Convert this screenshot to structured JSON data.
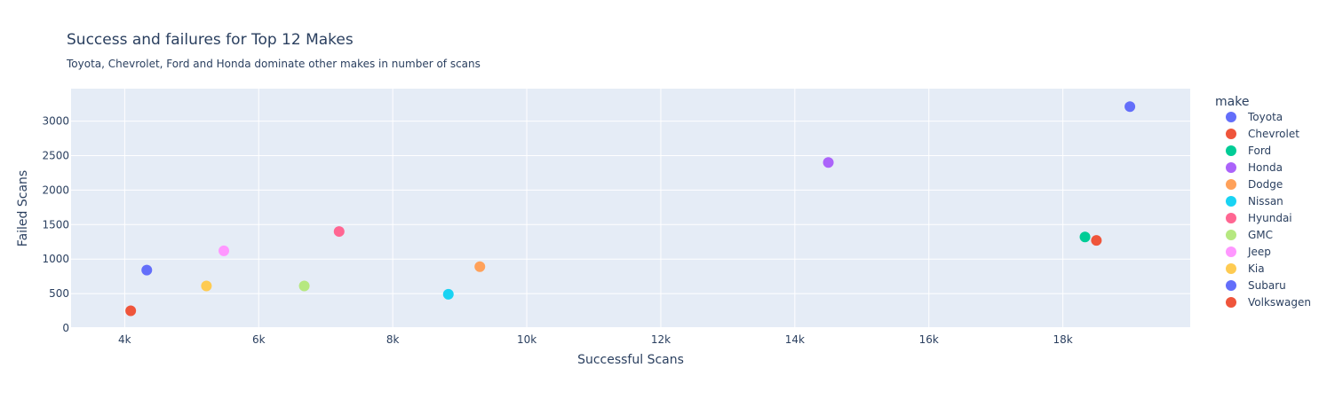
{
  "chart_data": {
    "type": "scatter",
    "title": "Success and failures for Top 12 Makes",
    "subtitle": "Toyota, Chevrolet, Ford and Honda dominate other makes in number of scans",
    "xlabel": "Successful Scans",
    "ylabel": "Failed Scans",
    "xlim": [
      3200,
      19900
    ],
    "ylim": [
      0,
      3470
    ],
    "xticks": [
      4000,
      6000,
      8000,
      10000,
      12000,
      14000,
      16000,
      18000
    ],
    "xtick_labels": [
      "4k",
      "6k",
      "8k",
      "10k",
      "12k",
      "14k",
      "16k",
      "18k"
    ],
    "yticks": [
      0,
      500,
      1000,
      1500,
      2000,
      2500,
      3000
    ],
    "ytick_labels": [
      "0",
      "500",
      "1000",
      "1500",
      "2000",
      "2500",
      "3000"
    ],
    "grid": true,
    "legend_title": "make",
    "legend_position": "right",
    "series": [
      {
        "name": "Toyota",
        "color": "#636efa",
        "x": 19000,
        "y": 3210
      },
      {
        "name": "Chevrolet",
        "color": "#EF553B",
        "x": 18500,
        "y": 1270
      },
      {
        "name": "Ford",
        "color": "#00cc96",
        "x": 18330,
        "y": 1320
      },
      {
        "name": "Honda",
        "color": "#ab63fa",
        "x": 14500,
        "y": 2400
      },
      {
        "name": "Dodge",
        "color": "#FFA15A",
        "x": 9300,
        "y": 890
      },
      {
        "name": "Nissan",
        "color": "#19d3f3",
        "x": 8830,
        "y": 490
      },
      {
        "name": "Hyundai",
        "color": "#FF6692",
        "x": 7200,
        "y": 1400
      },
      {
        "name": "GMC",
        "color": "#B6E880",
        "x": 6680,
        "y": 610
      },
      {
        "name": "Jeep",
        "color": "#FF97FF",
        "x": 5480,
        "y": 1120
      },
      {
        "name": "Kia",
        "color": "#FECB52",
        "x": 5220,
        "y": 610
      },
      {
        "name": "Subaru",
        "color": "#636efa",
        "x": 4330,
        "y": 840
      },
      {
        "name": "Volkswagen",
        "color": "#EF553B",
        "x": 4090,
        "y": 250
      }
    ]
  }
}
